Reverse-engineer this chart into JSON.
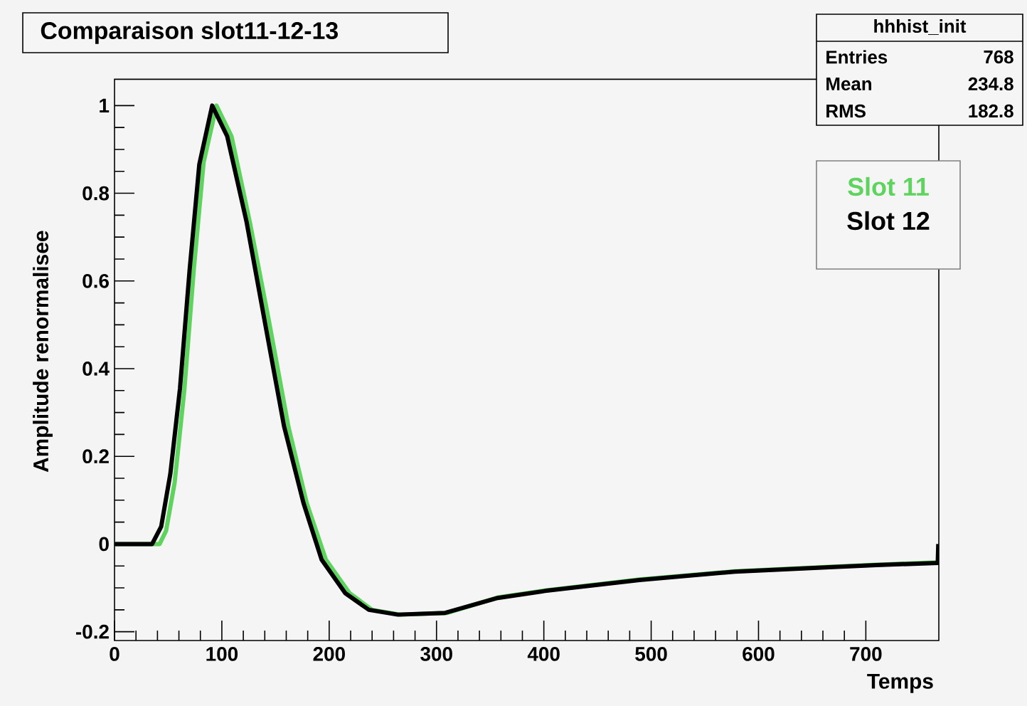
{
  "chart_data": {
    "type": "line",
    "title": "Comparaison slot11-12-13",
    "xlabel": "Temps",
    "ylabel": "Amplitude renormalisee",
    "annotations": [
      "hhhist_init",
      "Entries",
      "768",
      "Mean",
      "234.8",
      "RMS",
      "182.8"
    ],
    "xlim": [
      0,
      768
    ],
    "ylim": [
      -0.22,
      1.06
    ],
    "xticks": [
      0,
      100,
      200,
      300,
      400,
      500,
      600,
      700
    ],
    "yticks": [
      -0.2,
      0,
      0.2,
      0.4,
      0.6,
      0.8,
      1
    ],
    "legend": "top right",
    "grid": false,
    "series": [
      {
        "name": "Slot 11",
        "color": "#5ed35e",
        "x": [
          0,
          42,
          48,
          56,
          65,
          74,
          83,
          95,
          109,
          126,
          144,
          162,
          179,
          197,
          219,
          240,
          266,
          310,
          357,
          401,
          489,
          578,
          666,
          710,
          767
        ],
        "values": [
          0,
          0,
          0.03,
          0.14,
          0.35,
          0.63,
          0.87,
          1.0,
          0.93,
          0.735,
          0.507,
          0.268,
          0.094,
          -0.036,
          -0.112,
          -0.15,
          -0.161,
          -0.157,
          -0.122,
          -0.106,
          -0.081,
          -0.062,
          -0.052,
          -0.047,
          -0.042
        ]
      },
      {
        "name": "Slot 12",
        "color": "#000000",
        "x": [
          0,
          35,
          43.5,
          52,
          61,
          70,
          79,
          91,
          105,
          123,
          140,
          158,
          176,
          193,
          215,
          237,
          264,
          308,
          357,
          401,
          489,
          578,
          666,
          710,
          767,
          767.5
        ],
        "values": [
          0,
          0,
          0.04,
          0.16,
          0.355,
          0.626,
          0.866,
          1.0,
          0.93,
          0.735,
          0.507,
          0.268,
          0.094,
          -0.036,
          -0.112,
          -0.15,
          -0.161,
          -0.157,
          -0.123,
          -0.107,
          -0.082,
          -0.063,
          -0.053,
          -0.048,
          -0.043,
          0.0
        ]
      }
    ]
  }
}
